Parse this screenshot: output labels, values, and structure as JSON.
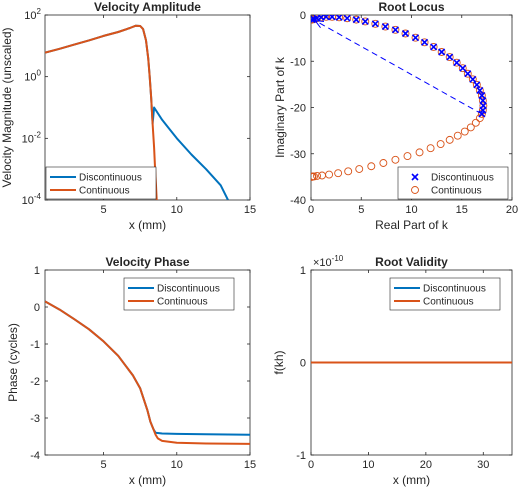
{
  "chart_data": [
    {
      "id": "amplitude",
      "type": "line",
      "title": "Velocity Amplitude",
      "xlabel": "x (mm)",
      "ylabel": "Velocity Magnitude (unscaled)",
      "xlim": [
        1,
        15
      ],
      "ylim": [
        0.0001,
        100
      ],
      "yscale": "log",
      "xticks": [
        5,
        10,
        15
      ],
      "yticks": [
        {
          "mantissa": "10",
          "exp": "-4",
          "value": 0.0001
        },
        {
          "mantissa": "10",
          "exp": "-2",
          "value": 0.01
        },
        {
          "mantissa": "10",
          "exp": "0",
          "value": 1
        },
        {
          "mantissa": "10",
          "exp": "2",
          "value": 100
        }
      ],
      "legend": "bottom-left",
      "grid": false,
      "series": [
        {
          "name": "Discontinuous",
          "color": "#0072BD",
          "marker": "none",
          "x": [
            1,
            2,
            3,
            4,
            5,
            6,
            6.8,
            7.2,
            7.5,
            7.7,
            7.9,
            8.05,
            8.15,
            8.25,
            8.35,
            8.45,
            8.45,
            9,
            10,
            11,
            12,
            13,
            13.5
          ],
          "y": [
            6,
            8,
            11,
            15,
            21,
            28,
            38,
            45,
            44,
            35,
            15,
            4,
            1,
            0.2,
            0.03,
            0.1,
            0.1,
            0.04,
            0.01,
            0.003,
            0.001,
            0.0003,
            0.0001
          ]
        },
        {
          "name": "Continuous",
          "color": "#D95319",
          "marker": "none",
          "x": [
            1,
            2,
            3,
            4,
            5,
            6,
            6.8,
            7.2,
            7.5,
            7.7,
            7.9,
            8.05,
            8.15,
            8.25,
            8.35,
            8.45,
            8.52,
            8.58,
            8.63
          ],
          "y": [
            6,
            8,
            11,
            15,
            21,
            28,
            38,
            45,
            44,
            35,
            15,
            4,
            1,
            0.2,
            0.03,
            0.005,
            0.001,
            0.0003,
            0.0001
          ]
        }
      ]
    },
    {
      "id": "locus",
      "type": "scatter",
      "title": "Root Locus",
      "xlabel": "Real Part of k",
      "ylabel": "Imaginary Part of k",
      "xlim": [
        0,
        20
      ],
      "ylim": [
        -40,
        0
      ],
      "xticks": [
        0,
        5,
        10,
        15,
        20
      ],
      "yticks": [
        0,
        -10,
        -20,
        -30,
        -40
      ],
      "legend": "bottom-right",
      "grid": false,
      "series": [
        {
          "name": "Discontinuous",
          "color": "#0000FF",
          "marker": "x",
          "x": [
            0.1,
            0.3,
            0.6,
            1.0,
            1.5,
            2.1,
            2.8,
            3.6,
            4.5,
            5.4,
            6.4,
            7.4,
            8.4,
            9.4,
            10.4,
            11.3,
            12.2,
            13.0,
            13.8,
            14.5,
            15.1,
            15.6,
            16.1,
            16.5,
            16.8,
            17.0,
            17.1,
            17.15,
            17.1,
            17.0
          ],
          "y": [
            -1.0,
            -0.9,
            -0.7,
            -0.5,
            -0.4,
            -0.4,
            -0.5,
            -0.7,
            -1.0,
            -1.4,
            -1.9,
            -2.5,
            -3.2,
            -4.0,
            -4.9,
            -5.9,
            -6.9,
            -8.0,
            -9.1,
            -10.3,
            -11.5,
            -12.7,
            -13.9,
            -15.1,
            -16.3,
            -17.4,
            -18.5,
            -19.6,
            -20.6,
            -21.4
          ]
        },
        {
          "name": "Continuous",
          "color": "#D95319",
          "marker": "circle",
          "x": [
            0.1,
            0.3,
            0.6,
            1.0,
            1.5,
            2.1,
            2.8,
            3.6,
            4.5,
            5.4,
            6.4,
            7.4,
            8.4,
            9.4,
            10.4,
            11.3,
            12.2,
            13.0,
            13.8,
            14.5,
            15.1,
            15.6,
            16.1,
            16.5,
            16.8,
            17.0,
            17.1,
            17.15,
            17.1,
            17.0,
            16.8,
            16.4,
            15.9,
            15.3,
            14.6,
            13.8,
            12.9,
            11.9,
            10.8,
            9.6,
            8.4,
            7.2,
            6.0,
            4.8,
            3.7,
            2.7,
            1.8,
            1.1,
            0.6,
            0.3,
            0.15,
            0.1
          ],
          "y": [
            -1.0,
            -0.9,
            -0.7,
            -0.5,
            -0.4,
            -0.4,
            -0.5,
            -0.7,
            -1.0,
            -1.4,
            -1.9,
            -2.5,
            -3.2,
            -4.0,
            -4.9,
            -5.9,
            -6.9,
            -8.0,
            -9.1,
            -10.3,
            -11.5,
            -12.7,
            -13.9,
            -15.1,
            -16.3,
            -17.4,
            -18.5,
            -19.6,
            -20.6,
            -21.4,
            -22.3,
            -23.3,
            -24.3,
            -25.2,
            -26.1,
            -27.0,
            -27.9,
            -28.8,
            -29.7,
            -30.5,
            -31.3,
            -32.0,
            -32.7,
            -33.3,
            -33.8,
            -34.2,
            -34.5,
            -34.7,
            -34.8,
            -34.9,
            -34.9,
            -35.0
          ]
        }
      ],
      "annotation": {
        "type": "arrow",
        "style": "dashed",
        "color": "#0000FF",
        "from": [
          17,
          -21.4
        ],
        "to": [
          0.4,
          -1.2
        ]
      }
    },
    {
      "id": "phase",
      "type": "line",
      "title": "Velocity Phase",
      "xlabel": "x (mm)",
      "ylabel": "Phase (cycles)",
      "xlim": [
        1,
        15
      ],
      "ylim": [
        -4,
        1
      ],
      "xticks": [
        5,
        10,
        15
      ],
      "yticks": [
        1,
        0,
        -1,
        -2,
        -3,
        -4
      ],
      "legend": "top-right",
      "grid": false,
      "series": [
        {
          "name": "Discontinuous",
          "color": "#0072BD",
          "marker": "none",
          "x": [
            1,
            2,
            3,
            4,
            5,
            6,
            7,
            7.5,
            8,
            8.2,
            8.4,
            8.55,
            9,
            10,
            12,
            15
          ],
          "y": [
            0.15,
            -0.07,
            -0.33,
            -0.6,
            -0.93,
            -1.32,
            -1.85,
            -2.2,
            -2.8,
            -3.1,
            -3.3,
            -3.4,
            -3.42,
            -3.43,
            -3.44,
            -3.45
          ]
        },
        {
          "name": "Continuous",
          "color": "#D95319",
          "marker": "none",
          "x": [
            1,
            2,
            3,
            4,
            5,
            6,
            7,
            7.5,
            8,
            8.2,
            8.4,
            8.55,
            8.7,
            9,
            10,
            12,
            15
          ],
          "y": [
            0.15,
            -0.07,
            -0.33,
            -0.6,
            -0.93,
            -1.32,
            -1.85,
            -2.2,
            -2.8,
            -3.1,
            -3.3,
            -3.45,
            -3.55,
            -3.62,
            -3.67,
            -3.69,
            -3.7
          ]
        }
      ]
    },
    {
      "id": "validity",
      "type": "line",
      "title": "Root Validity",
      "xlabel": "x (mm)",
      "ylabel": "f(kh)",
      "xlim": [
        0,
        35
      ],
      "ylim": [
        -1,
        1
      ],
      "xticks": [
        0,
        10,
        20,
        30
      ],
      "yticks": [
        1,
        0,
        -1
      ],
      "exponent_label": {
        "mantissa": "×10",
        "exp": "-10"
      },
      "legend": "top-right",
      "grid": false,
      "series": [
        {
          "name": "Discontinuous",
          "color": "#0072BD",
          "marker": "none",
          "x": [
            0,
            35
          ],
          "y": [
            0,
            0
          ]
        },
        {
          "name": "Continuous",
          "color": "#D95319",
          "marker": "none",
          "x": [
            0,
            35
          ],
          "y": [
            0,
            0
          ]
        }
      ]
    }
  ]
}
